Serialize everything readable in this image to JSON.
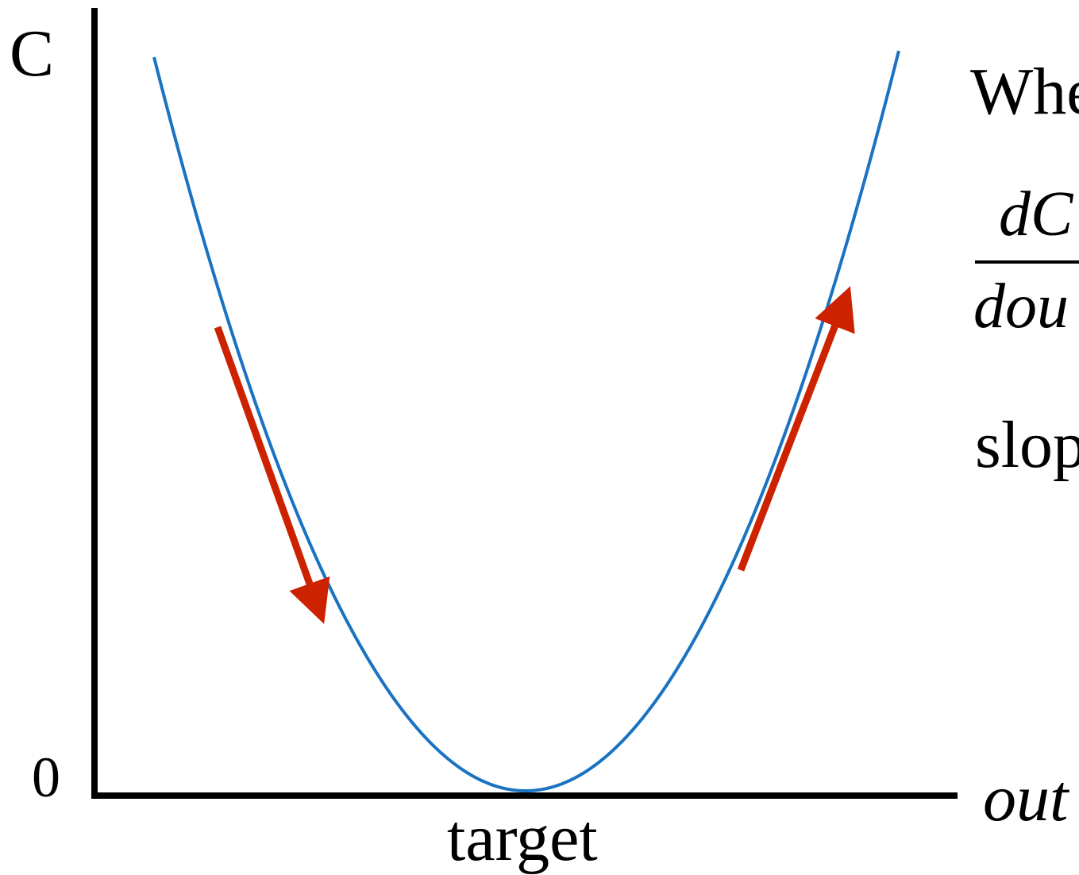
{
  "labels": {
    "y_axis": "C",
    "y_zero": "0",
    "x_target": "target",
    "x_axis": "out"
  },
  "side_text": {
    "line1": "Whe",
    "frac_numerator": "dC",
    "frac_denominator": "dou",
    "line3": "slop"
  },
  "colors": {
    "curve": "#1a73c2",
    "arrow": "#cc2200",
    "axis": "#000000"
  }
}
